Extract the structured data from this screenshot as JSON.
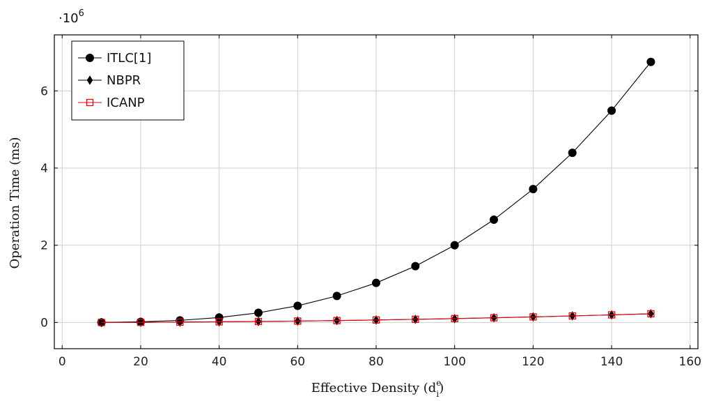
{
  "chart_data": {
    "type": "line",
    "xlabel": "Effective Density (d",
    "xlabel_sup": "e",
    "xlabel_sub": "i",
    "xlabel_close": ")",
    "ylabel": "Operation Time (ms)",
    "y_multiplier_base": "·10",
    "y_multiplier_exp": "6",
    "xlim": [
      -2,
      162
    ],
    "ylim": [
      -0.68,
      7.45
    ],
    "x_ticks": [
      0,
      20,
      40,
      60,
      80,
      100,
      120,
      140,
      160
    ],
    "y_ticks": [
      0,
      2,
      4,
      6
    ],
    "grid": true,
    "legend_position": "top-left",
    "x": [
      10,
      20,
      30,
      40,
      50,
      60,
      70,
      80,
      90,
      100,
      110,
      120,
      130,
      140,
      150
    ],
    "series": [
      {
        "name": "ITLC[1]",
        "marker": "circle",
        "color": "#000000",
        "values": [
          0.002,
          0.016,
          0.054,
          0.128,
          0.25,
          0.432,
          0.686,
          1.024,
          1.458,
          2.0,
          2.662,
          3.456,
          4.394,
          5.488,
          6.75
        ]
      },
      {
        "name": "NBPR",
        "marker": "diamond",
        "color": "#000000",
        "values": [
          0.0,
          0.004,
          0.009,
          0.016,
          0.025,
          0.036,
          0.049,
          0.064,
          0.081,
          0.1,
          0.121,
          0.144,
          0.169,
          0.196,
          0.225
        ]
      },
      {
        "name": "ICANP",
        "marker": "square",
        "color": "#e8000b",
        "values": [
          0.0,
          0.004,
          0.009,
          0.016,
          0.025,
          0.036,
          0.049,
          0.064,
          0.081,
          0.1,
          0.121,
          0.144,
          0.169,
          0.196,
          0.225
        ]
      }
    ]
  }
}
